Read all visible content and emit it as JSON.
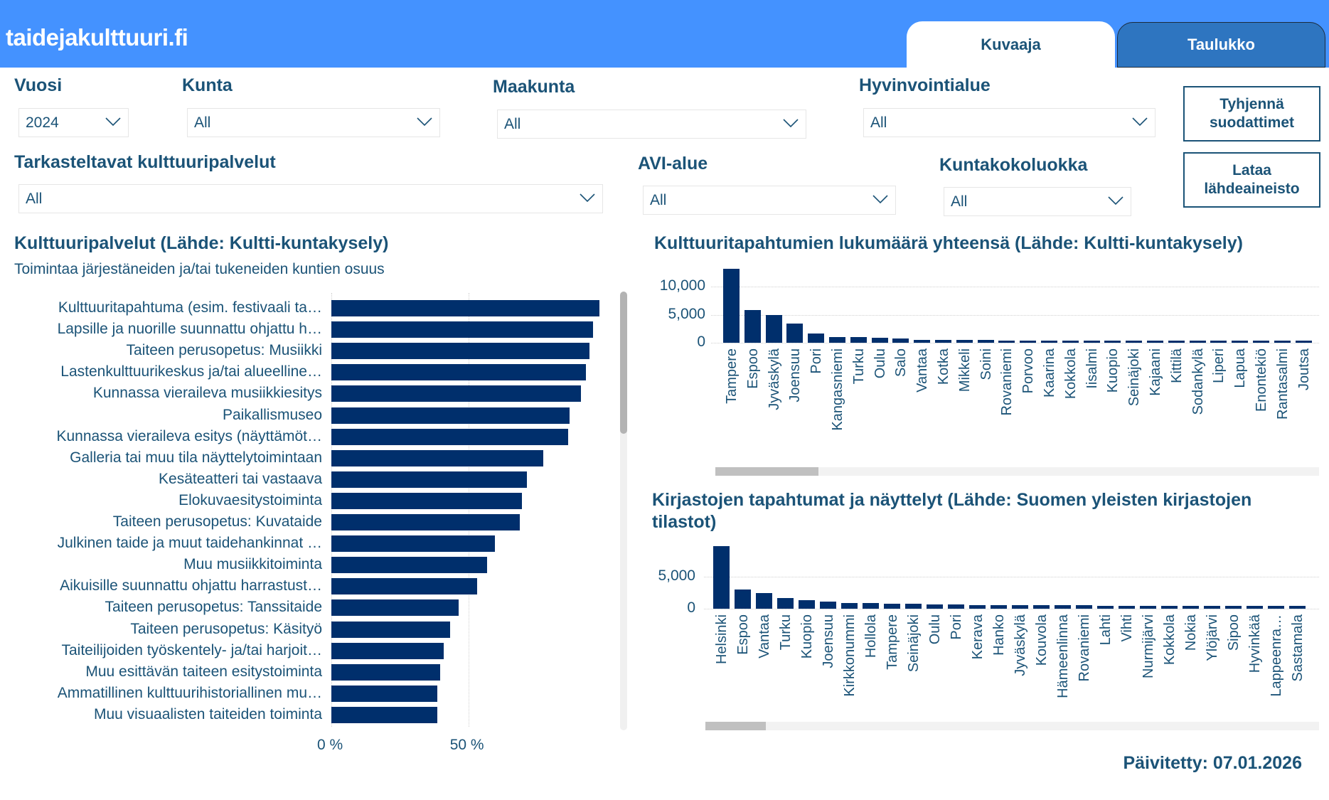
{
  "header": {
    "title": "taidejakulttuuri.fi",
    "tabs": [
      {
        "label": "Kuvaaja",
        "active": true
      },
      {
        "label": "Taulukko",
        "active": false
      }
    ]
  },
  "filters": {
    "vuosi": {
      "label": "Vuosi",
      "value": "2024"
    },
    "kunta": {
      "label": "Kunta",
      "value": "All"
    },
    "maakunta": {
      "label": "Maakunta",
      "value": "All"
    },
    "hyvinvointialue": {
      "label": "Hyvinvointialue",
      "value": "All"
    },
    "kulttuuripalvelut": {
      "label": "Tarkasteltavat kulttuuripalvelut",
      "value": "All"
    },
    "avi_alue": {
      "label": "AVI-alue",
      "value": "All"
    },
    "kuntakokoluokka": {
      "label": "Kuntakokoluokka",
      "value": "All"
    }
  },
  "buttons": {
    "clear_filters": "Tyhjennä suodattimet",
    "download_source": "Lataa lähdeaineisto"
  },
  "colors": {
    "header": "#4492FF",
    "tab_inactive": "#2E75C0",
    "text": "#1B5377",
    "bar": "#002F6C"
  },
  "footer": {
    "updated": "Päivitetty: 07.01.2026"
  },
  "chart_data": [
    {
      "type": "bar",
      "orientation": "horizontal",
      "title": "Kulttuuripalvelut (Lähde: Kultti-kuntakysely)",
      "subtitle": "Toimintaa järjestäneiden ja/tai tukeneiden kuntien osuus",
      "xlabel": "",
      "ylabel": "",
      "xlim": [
        0,
        100
      ],
      "x_ticks": [
        "0 %",
        "50 %"
      ],
      "grid": true,
      "categories": [
        "Kulttuuritapahtuma (esim. festivaali ta…",
        "Lapsille ja nuorille suunnattu ohjattu h…",
        "Taiteen perusopetus: Musiikki",
        "Lastenkulttuurikeskus ja/tai alueelline…",
        "Kunnassa vieraileva musiikkiesitys",
        "Paikallismuseo",
        "Kunnassa vieraileva esitys (näyttämöt…",
        "Galleria tai muu tila näyttelytoimintaan",
        "Kesäteatteri tai vastaava",
        "Elokuvaesitystoiminta",
        "Taiteen perusopetus: Kuvataide",
        "Julkinen taide ja muut taidehankinnat …",
        "Muu musiikkitoiminta",
        "Aikuisille suunnattu ohjattu harrastust…",
        "Taiteen perusopetus: Tanssitaide",
        "Taiteen perusopetus: Käsityö",
        "Taiteilijoiden työskentely- ja/tai harjoit…",
        "Muu esittävän taiteen esitystoiminta",
        "Ammatillinen kulttuurihistoriallinen mu…",
        "Muu visuaalisten taiteiden toiminta"
      ],
      "values": [
        97.8,
        95.5,
        94.2,
        92.9,
        91.1,
        86.9,
        86.4,
        77.3,
        71.4,
        69.6,
        68.8,
        59.7,
        56.8,
        53.2,
        46.5,
        43.4,
        41.0,
        39.8,
        38.6,
        38.6
      ]
    },
    {
      "type": "bar",
      "title": "Kulttuuritapahtumien lukumäärä yhteensä (Lähde: Kultti-kuntakysely)",
      "xlabel": "",
      "ylabel": "",
      "ylim": [
        0,
        14000
      ],
      "y_ticks": [
        {
          "v": 0,
          "label": "0"
        },
        {
          "v": 5000,
          "label": "5,000"
        },
        {
          "v": 10000,
          "label": "10,000"
        }
      ],
      "grid": true,
      "categories": [
        "Tampere",
        "Espoo",
        "Jyväskylä",
        "Joensuu",
        "Pori",
        "Kangasniemi",
        "Turku",
        "Oulu",
        "Salo",
        "Vantaa",
        "Kotka",
        "Mikkeli",
        "Soini",
        "Rovaniemi",
        "Porvoo",
        "Kaarina",
        "Kokkola",
        "Iisalmi",
        "Kuopio",
        "Seinäjoki",
        "Kajaani",
        "Kittilä",
        "Sodankylä",
        "Liperi",
        "Lapua",
        "Enontekiö",
        "Rantasalmi",
        "Joutsa"
      ],
      "values": [
        13200,
        5800,
        4900,
        3400,
        1700,
        1050,
        970,
        840,
        800,
        550,
        500,
        460,
        460,
        420,
        420,
        380,
        370,
        360,
        350,
        340,
        330,
        320,
        310,
        300,
        290,
        280,
        270,
        260
      ]
    },
    {
      "type": "bar",
      "title": "Kirjastojen tapahtumat ja näyttelyt (Lähde: Suomen yleisten kirjastojen tilastot)",
      "xlabel": "",
      "ylabel": "",
      "ylim": [
        0,
        10500
      ],
      "y_ticks": [
        {
          "v": 0,
          "label": "0"
        },
        {
          "v": 5000,
          "label": "5,000"
        }
      ],
      "grid": true,
      "categories": [
        "Helsinki",
        "Espoo",
        "Vantaa",
        "Turku",
        "Kuopio",
        "Joensuu",
        "Kirkkonummi",
        "Hollola",
        "Tampere",
        "Seinäjoki",
        "Oulu",
        "Pori",
        "Kerava",
        "Hanko",
        "Jyväskylä",
        "Kouvola",
        "Hämeenlinna",
        "Rovaniemi",
        "Lahti",
        "Vihti",
        "Nurmijärvi",
        "Kokkola",
        "Nokia",
        "Ylöjärvi",
        "Sipoo",
        "Hyvinkää",
        "Lappeenra…",
        "Sastamala"
      ],
      "values": [
        9800,
        3000,
        2480,
        1630,
        1370,
        1150,
        925,
        890,
        780,
        780,
        670,
        670,
        590,
        560,
        540,
        530,
        520,
        510,
        500,
        490,
        480,
        470,
        460,
        455,
        450,
        445,
        440,
        430
      ]
    }
  ]
}
